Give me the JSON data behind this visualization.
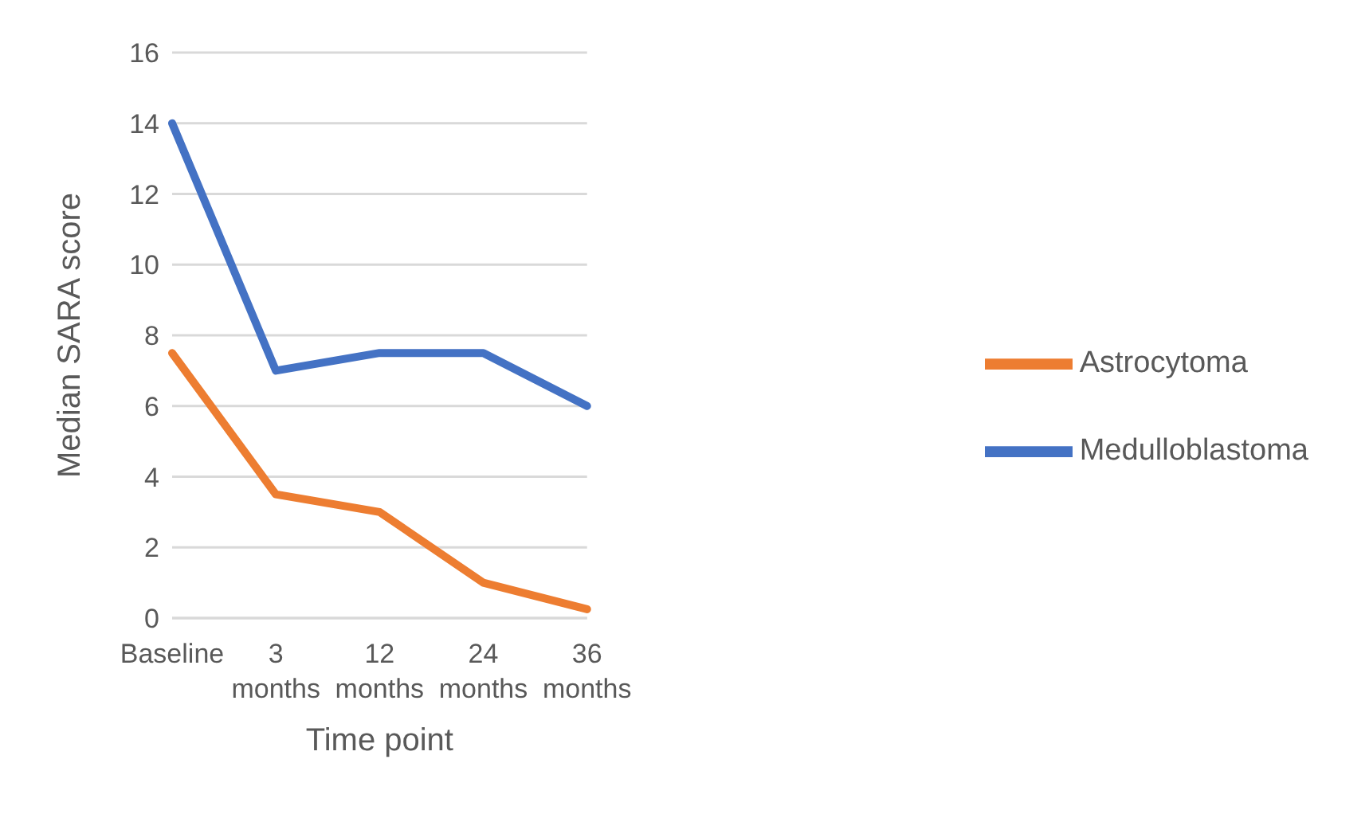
{
  "chart_data": {
    "type": "line",
    "xlabel": "Time point",
    "ylabel": "Median SARA score",
    "categories": [
      "Baseline",
      "3 months",
      "12 months",
      "24 months",
      "36 months"
    ],
    "series": [
      {
        "name": "Medulloblastoma",
        "color": "#4472c4",
        "values": [
          14,
          7,
          7.5,
          7.5,
          6
        ]
      },
      {
        "name": "Astrocytoma",
        "color": "#ed7d31",
        "values": [
          7.5,
          3.5,
          3,
          1,
          0.25
        ]
      }
    ],
    "ylim": [
      0,
      16
    ],
    "yticks": [
      0,
      2,
      4,
      6,
      8,
      10,
      12,
      14,
      16
    ],
    "grid": "y",
    "legend": "right",
    "marker": "none",
    "line_style": "solid"
  }
}
